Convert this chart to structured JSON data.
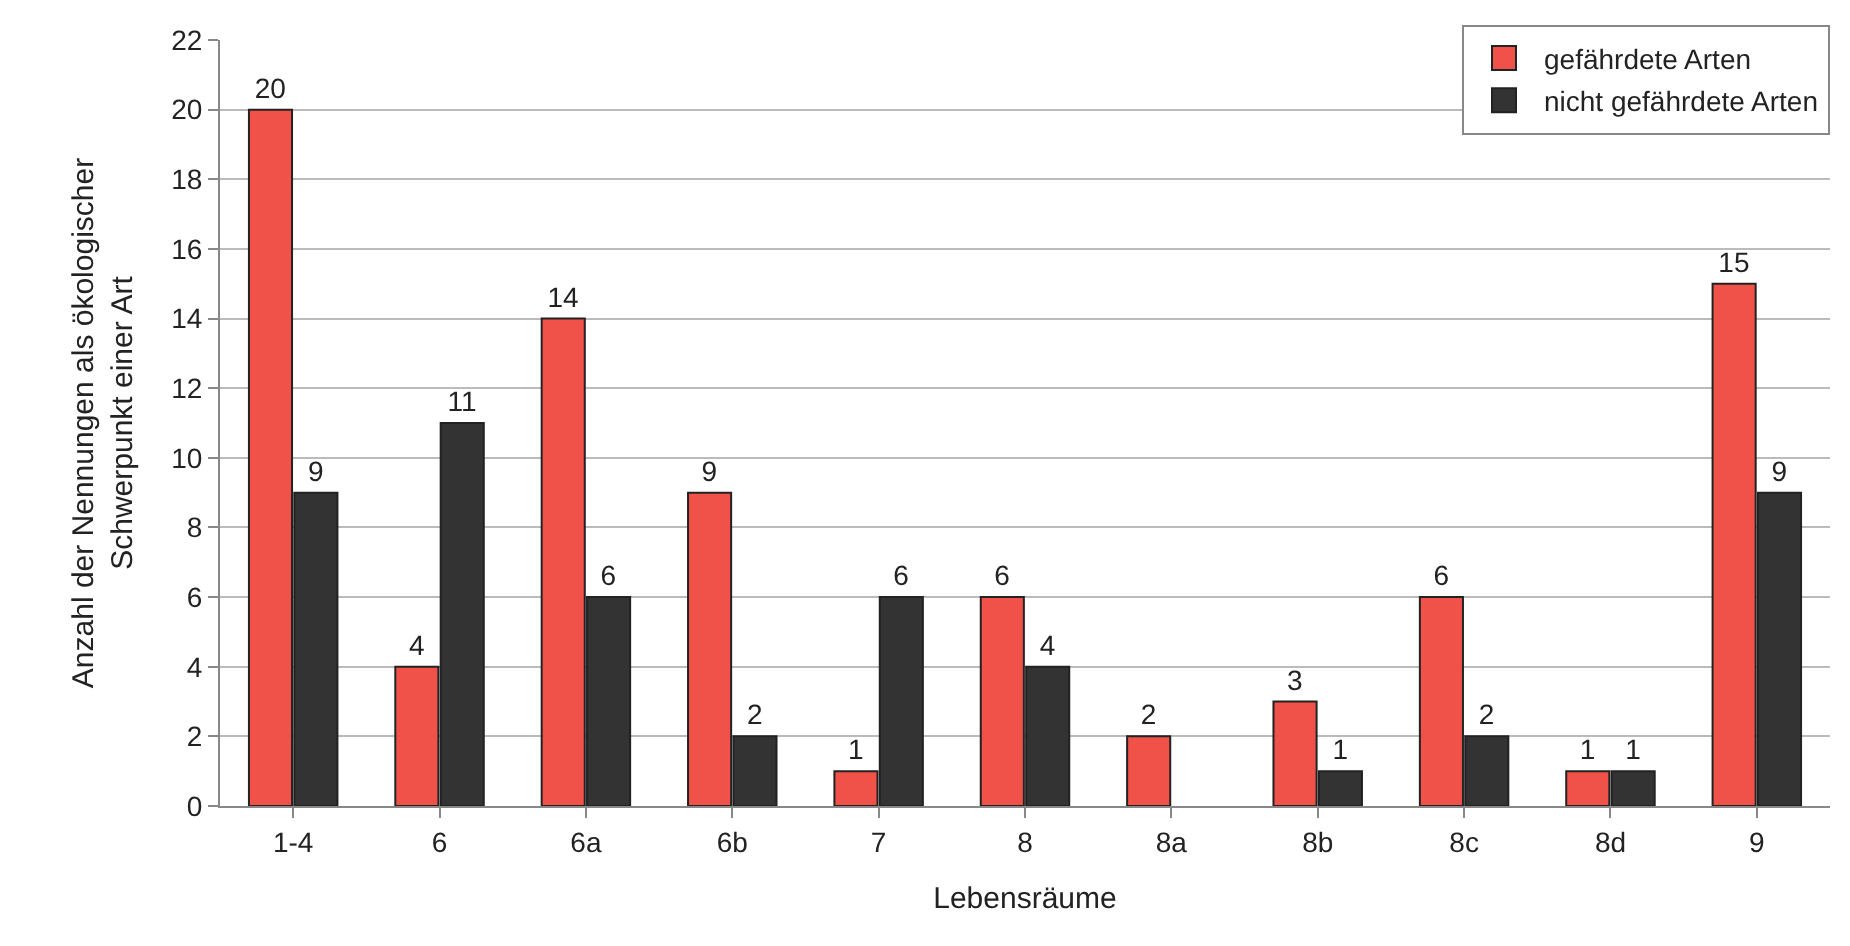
{
  "chart_data": {
    "type": "bar",
    "xlabel": "Lebensräume",
    "ylabel": "Anzahl der Nennungen als ökologischer\nSchwerpunkt einer Art",
    "categories": [
      "1-4",
      "6",
      "6a",
      "6b",
      "7",
      "8",
      "8a",
      "8b",
      "8c",
      "8d",
      "9"
    ],
    "series": [
      {
        "name": "gefährdete Arten",
        "color": "#f0524a",
        "values": [
          20,
          4,
          14,
          9,
          1,
          6,
          2,
          3,
          6,
          1,
          15
        ]
      },
      {
        "name": "nicht gefährdete Arten",
        "color": "#333333",
        "values": [
          9,
          11,
          6,
          2,
          6,
          4,
          null,
          1,
          2,
          1,
          9
        ]
      }
    ],
    "ylim": [
      0,
      22
    ],
    "yticks": [
      0,
      2,
      4,
      6,
      8,
      10,
      12,
      14,
      16,
      18,
      20,
      22
    ],
    "grid": "y",
    "legend": "top right",
    "data_labels": true
  }
}
